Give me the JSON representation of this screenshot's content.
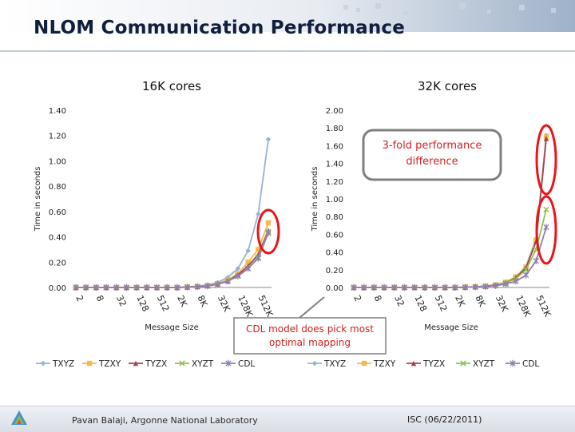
{
  "slide": {
    "title": "NLOM Communication Performance",
    "footer_author": "Pavan Balaji, Argonne National Laboratory",
    "footer_date": "ISC (06/22/2011)"
  },
  "chart_data": [
    {
      "type": "line",
      "title": "16K cores",
      "xlabel": "Message Size",
      "ylabel": "Time in seconds",
      "ylim": [
        0,
        1.4
      ],
      "yticks": [
        "0.00",
        "0.20",
        "0.40",
        "0.60",
        "0.80",
        "1.00",
        "1.20",
        "1.40"
      ],
      "categories": [
        "2",
        "4",
        "8",
        "16",
        "32",
        "64",
        "128",
        "256",
        "512",
        "1K",
        "2K",
        "4K",
        "8K",
        "16K",
        "32K",
        "64K",
        "128K",
        "256K",
        "512K",
        "1M"
      ],
      "xtick_labels": [
        "2",
        "8",
        "32",
        "128",
        "512",
        "2K",
        "8K",
        "32K",
        "128K",
        "512K"
      ],
      "legend": "bottom",
      "grid": false,
      "series": [
        {
          "name": "TXYZ",
          "color": "#95b3d7",
          "marker": "diamond",
          "values": [
            0,
            0,
            0,
            0,
            0,
            0,
            0,
            0,
            0,
            0,
            0,
            0.005,
            0.01,
            0.02,
            0.04,
            0.08,
            0.15,
            0.29,
            0.58,
            1.17
          ]
        },
        {
          "name": "TZXY",
          "color": "#f5b94c",
          "marker": "square",
          "values": [
            0,
            0,
            0,
            0,
            0,
            0,
            0,
            0,
            0,
            0,
            0,
            0.004,
            0.008,
            0.015,
            0.03,
            0.06,
            0.11,
            0.2,
            0.3,
            0.51
          ]
        },
        {
          "name": "TYZX",
          "color": "#a0444b",
          "marker": "triangle",
          "values": [
            0,
            0,
            0,
            0,
            0,
            0,
            0,
            0,
            0,
            0,
            0,
            0.003,
            0.007,
            0.013,
            0.027,
            0.05,
            0.1,
            0.17,
            0.26,
            0.45
          ]
        },
        {
          "name": "XYZT",
          "color": "#92c050",
          "marker": "x",
          "values": [
            0,
            0,
            0,
            0,
            0,
            0,
            0,
            0,
            0,
            0,
            0,
            0.003,
            0.006,
            0.012,
            0.025,
            0.05,
            0.09,
            0.15,
            0.24,
            0.44
          ]
        },
        {
          "name": "CDL",
          "color": "#8e7fb3",
          "marker": "star",
          "values": [
            0,
            0,
            0,
            0,
            0,
            0,
            0,
            0,
            0,
            0,
            0,
            0.003,
            0.006,
            0.012,
            0.025,
            0.05,
            0.09,
            0.15,
            0.23,
            0.43
          ]
        }
      ]
    },
    {
      "type": "line",
      "title": "32K cores",
      "xlabel": "Message Size",
      "ylabel": "Time in seconds",
      "ylim": [
        0,
        2.0
      ],
      "yticks": [
        "0.00",
        "0.20",
        "0.40",
        "0.60",
        "0.80",
        "1.00",
        "1.20",
        "1.40",
        "1.60",
        "1.80",
        "2.00"
      ],
      "categories": [
        "2",
        "4",
        "8",
        "16",
        "32",
        "64",
        "128",
        "256",
        "512",
        "1K",
        "2K",
        "4K",
        "8K",
        "16K",
        "32K",
        "64K",
        "128K",
        "256K",
        "512K",
        "1M"
      ],
      "xtick_labels": [
        "2",
        "8",
        "32",
        "128",
        "512",
        "2K",
        "8K",
        "32K",
        "128K",
        "512K"
      ],
      "legend": "bottom",
      "grid": false,
      "series": [
        {
          "name": "TXYZ",
          "color": "#95b3d7",
          "marker": "diamond",
          "values": [
            0,
            0,
            0,
            0,
            0,
            0,
            0,
            0,
            0,
            0,
            0,
            0.004,
            0.008,
            0.016,
            0.03,
            0.06,
            0.12,
            0.24,
            0.55,
            1.72
          ]
        },
        {
          "name": "TZXY",
          "color": "#f5b94c",
          "marker": "square",
          "values": [
            0,
            0,
            0,
            0,
            0,
            0,
            0,
            0,
            0,
            0,
            0,
            0.004,
            0.008,
            0.015,
            0.03,
            0.06,
            0.12,
            0.23,
            0.53,
            1.7
          ]
        },
        {
          "name": "TYZX",
          "color": "#a0444b",
          "marker": "triangle",
          "values": [
            0,
            0,
            0,
            0,
            0,
            0,
            0,
            0,
            0,
            0,
            0,
            0.003,
            0.007,
            0.014,
            0.028,
            0.05,
            0.11,
            0.22,
            0.52,
            1.68
          ]
        },
        {
          "name": "XYZT",
          "color": "#92c050",
          "marker": "x",
          "values": [
            0,
            0,
            0,
            0,
            0,
            0,
            0,
            0,
            0,
            0,
            0,
            0.003,
            0.006,
            0.012,
            0.024,
            0.05,
            0.1,
            0.2,
            0.43,
            0.88
          ]
        },
        {
          "name": "CDL",
          "color": "#8e7fb3",
          "marker": "star",
          "values": [
            0,
            0,
            0,
            0,
            0,
            0,
            0,
            0,
            0,
            0,
            0,
            0.003,
            0.006,
            0.01,
            0.02,
            0.04,
            0.07,
            0.14,
            0.3,
            0.68
          ]
        }
      ]
    }
  ],
  "annotations": {
    "callout_3fold": "3-fold performance difference",
    "callout_cdl": "CDL model does pick most optimal mapping"
  }
}
